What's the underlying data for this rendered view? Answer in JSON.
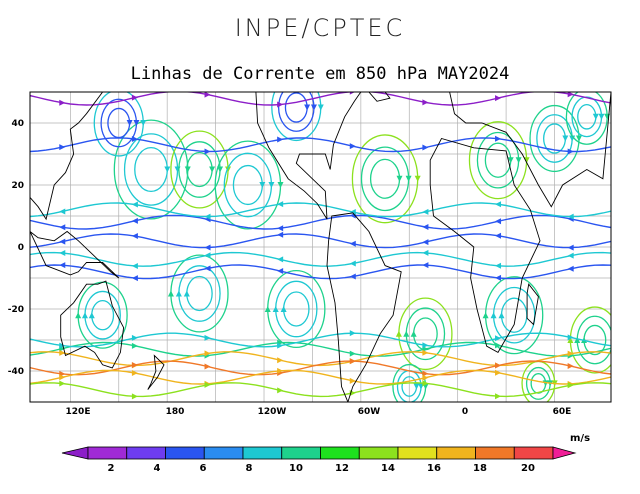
{
  "header": {
    "title": "INPE/CPTEC"
  },
  "map": {
    "title": "Linhas de Corrente em 850 hPa MAY2024",
    "lat_ticks": [
      "40",
      "20",
      "0",
      "-20",
      "-40"
    ],
    "lon_ticks": [
      "120E",
      "180",
      "120W",
      "60W",
      "0",
      "60E"
    ],
    "lat_range": [
      -50,
      50
    ],
    "lon_range": [
      95,
      455
    ],
    "grid": true,
    "variable": "streamlines 850 hPa wind speed"
  },
  "colorbar": {
    "unit": "m/s",
    "labels": [
      "2",
      "4",
      "6",
      "8",
      "10",
      "12",
      "14",
      "16",
      "18",
      "20"
    ],
    "colors": [
      "#8c1ec8",
      "#a02ad6",
      "#6e3cf0",
      "#2a55f0",
      "#2a8cf0",
      "#1ec8d2",
      "#1ed28c",
      "#1ee11e",
      "#8ce11e",
      "#e1e11e",
      "#f0b41e",
      "#f07828",
      "#f04646",
      "#f01e96"
    ],
    "bins": [
      0,
      2,
      4,
      6,
      8,
      10,
      12,
      14,
      16,
      18,
      20,
      22
    ]
  },
  "palette": {
    "coast": "#000000",
    "grid": "#b0b0b0",
    "speed_colors": [
      "#8c1ec8",
      "#2a55f0",
      "#1ec8d2",
      "#1ed28c",
      "#8ce11e",
      "#f0b41e",
      "#f07828"
    ]
  }
}
